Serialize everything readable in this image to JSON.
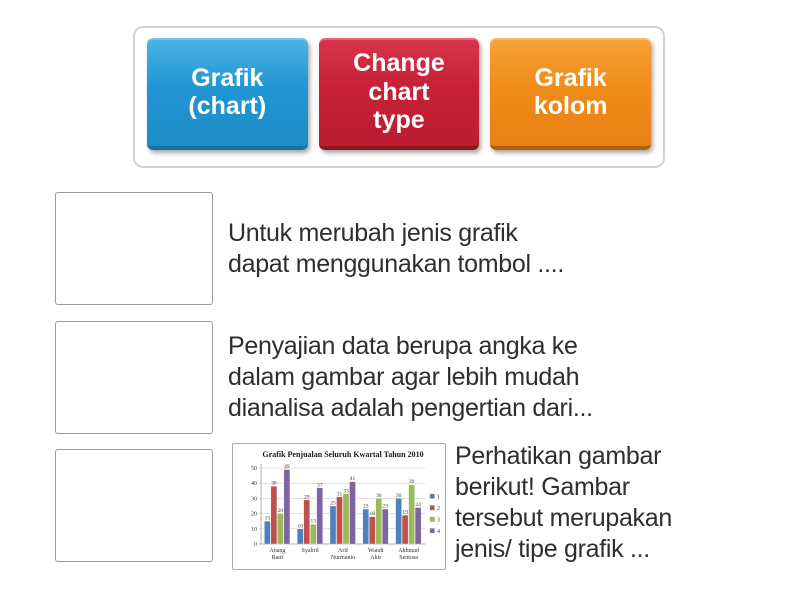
{
  "answers_tray": {
    "tiles": [
      {
        "label": "Grafik (chart)",
        "color": "#2196d3"
      },
      {
        "label": "Change chart type",
        "color": "#c72135"
      },
      {
        "label": "Grafik kolom",
        "color": "#f08c1a"
      }
    ]
  },
  "questions": [
    {
      "lines": [
        "Untuk merubah jenis grafik",
        "dapat menggunakan tombol ...."
      ]
    },
    {
      "lines": [
        "Penyajian data berupa angka ke",
        "dalam gambar agar lebih mudah",
        "dianalisa adalah pengertian dari..."
      ]
    },
    {
      "lines": [
        "Perhatikan gambar",
        "berikut! Gambar",
        "tersebut merupakan",
        "jenis/ tipe grafik ..."
      ]
    }
  ],
  "chart_data": {
    "type": "bar",
    "title": "Grafik Penjualan Seluruh Kwartal Tahun 2010",
    "categories": [
      "Anang Rauf",
      "Syahril",
      "Arif Nurmanto",
      "Wandi Akir",
      "Akhmad Sentosa"
    ],
    "series": [
      {
        "name": "1",
        "color": "#4f81bd",
        "values": [
          15,
          10,
          25,
          23,
          30
        ]
      },
      {
        "name": "2",
        "color": "#c0504d",
        "values": [
          38,
          29,
          31,
          18,
          19
        ]
      },
      {
        "name": "3",
        "color": "#9bbb59",
        "values": [
          20,
          13,
          33,
          30,
          39
        ]
      },
      {
        "name": "4",
        "color": "#8064a2",
        "values": [
          49,
          37,
          41,
          23,
          24
        ]
      }
    ],
    "xlabel": "",
    "ylabel": "",
    "ylim": [
      0,
      50
    ],
    "yticks": [
      0,
      10,
      20,
      30,
      40,
      50
    ],
    "legend_position": "right",
    "grid": true
  }
}
